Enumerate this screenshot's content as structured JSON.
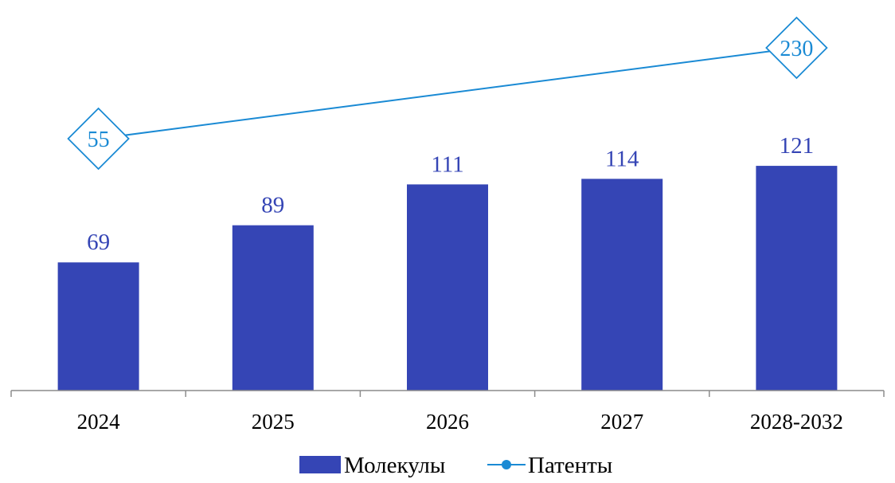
{
  "chart_data": {
    "type": "bar",
    "categories": [
      "2024",
      "2025",
      "2026",
      "2027",
      "2028-2032"
    ],
    "series": [
      {
        "name": "Молекулы",
        "type": "bar",
        "values": [
          69,
          89,
          111,
          114,
          121
        ],
        "color": "#3545b5",
        "label_color": "#3545b5"
      },
      {
        "name": "Патенты",
        "type": "line",
        "values": [
          55,
          null,
          null,
          null,
          230
        ],
        "color": "#1a8ad4",
        "label_color": "#1a8ad4",
        "labels_shown": [
          true,
          false,
          false,
          false,
          true
        ]
      }
    ],
    "legend_position": "bottom-center",
    "grid": false
  }
}
